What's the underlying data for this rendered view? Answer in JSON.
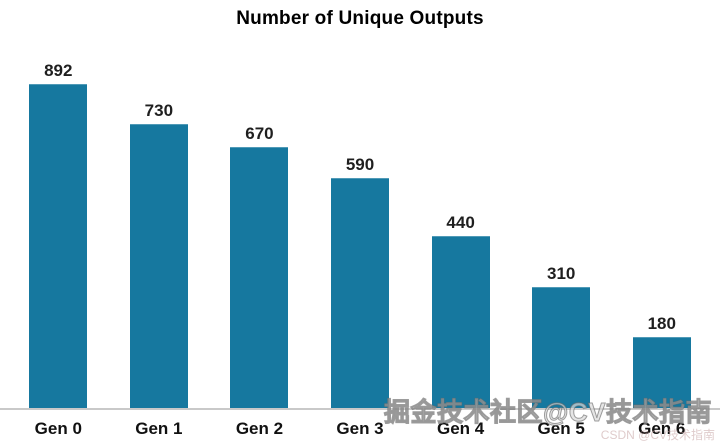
{
  "chart_data": {
    "type": "bar",
    "title": "Number of Unique Outputs",
    "categories": [
      "Gen 0",
      "Gen 1",
      "Gen 2",
      "Gen 3",
      "Gen 4",
      "Gen 5",
      "Gen 6"
    ],
    "values": [
      892,
      730,
      670,
      590,
      440,
      310,
      180
    ],
    "xlabel": "",
    "ylabel": "",
    "ylim": [
      0,
      892
    ],
    "grid": false,
    "legend": false,
    "bar_color": "#16789F",
    "value_label_color": "#1f1f1f",
    "axis_line_color": "#c9c9c9"
  },
  "watermarks": {
    "main": "掘金技术社区@CV技术指南",
    "secondary": "CSDN @CV技术指南"
  }
}
